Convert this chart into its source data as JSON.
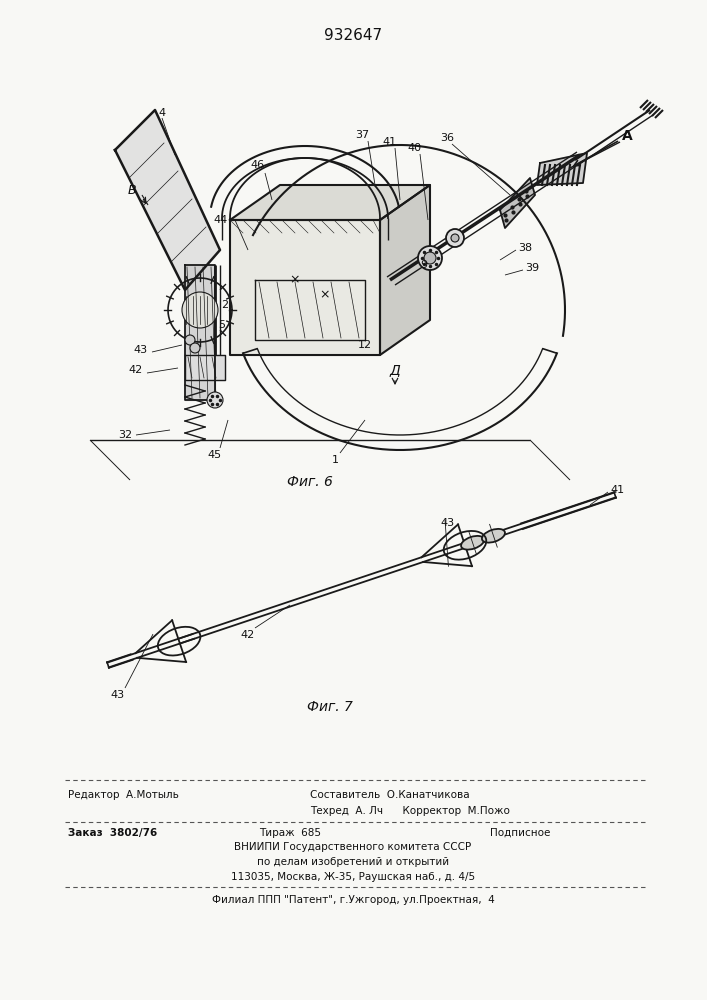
{
  "patent_number": "932647",
  "fig6_label": "Фиг. 6",
  "fig7_label": "Фиг. 7",
  "bg_color": "#f8f8f5",
  "line_color": "#1a1a1a",
  "text_color": "#111111",
  "footer": {
    "row1_left": "Редактор  А.Мотыль",
    "row1_right": "Составитель  О.Канатчикова",
    "row2_right": "Техред  А. Лч      Корректор  М.Пожо",
    "row3_left": "Заказ  3802/76",
    "row3_mid": "Тираж  685",
    "row3_right": "Подписное",
    "row4": "ВНИИПИ Государственного комитета СССР",
    "row5": "по делам изобретений и открытий",
    "row6": "113035, Москва, Ж-35, Раушская наб., д. 4/5",
    "row7": "Филиал ППП \"Патент\", г.Ужгород, ул.Проектная,  4"
  }
}
